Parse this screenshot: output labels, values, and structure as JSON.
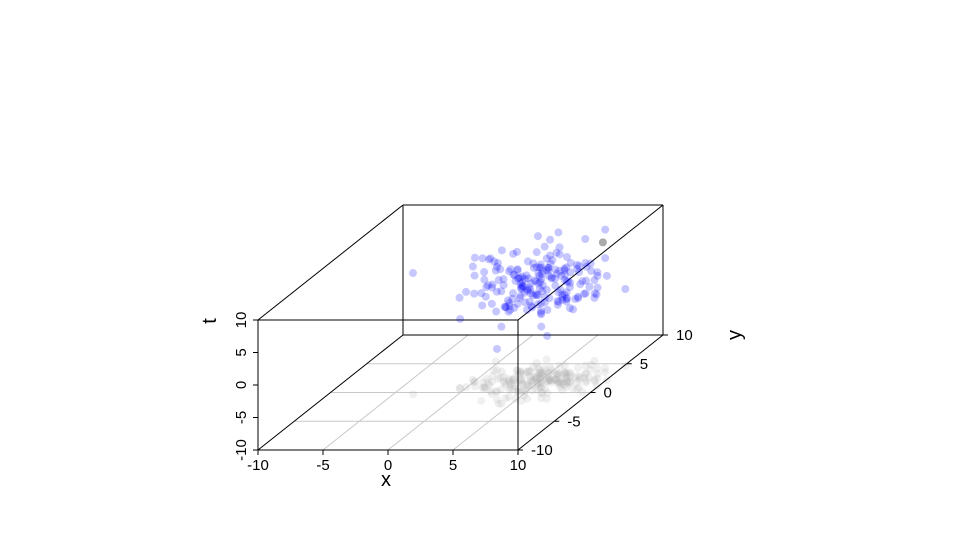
{
  "chart_data": {
    "type": "scatter3d",
    "title": "",
    "xlabel": "x",
    "ylabel": "y",
    "zlabel": "t",
    "xlim": [
      -10,
      10
    ],
    "ylim": [
      -10,
      10
    ],
    "zlim": [
      -10,
      10
    ],
    "x_ticks": [
      "-10",
      "-5",
      "0",
      "5",
      "10"
    ],
    "y_ticks": [
      "-10",
      "-5",
      "0",
      "5",
      "10"
    ],
    "z_ticks": [
      "-10",
      "-5",
      "0",
      "5",
      "10"
    ],
    "floor_grid": true,
    "point_color": "#0000ff",
    "shadow_color": "#aaaaaa",
    "outlier_color": "#888888",
    "cluster_center": {
      "x": 5,
      "y": 2,
      "t": 5
    },
    "cluster_spread": {
      "x": 2.5,
      "y": 1.5,
      "t": 2.5
    },
    "n_points": 200,
    "outlier": {
      "x": 9,
      "y": 3.5,
      "t": 10
    }
  }
}
